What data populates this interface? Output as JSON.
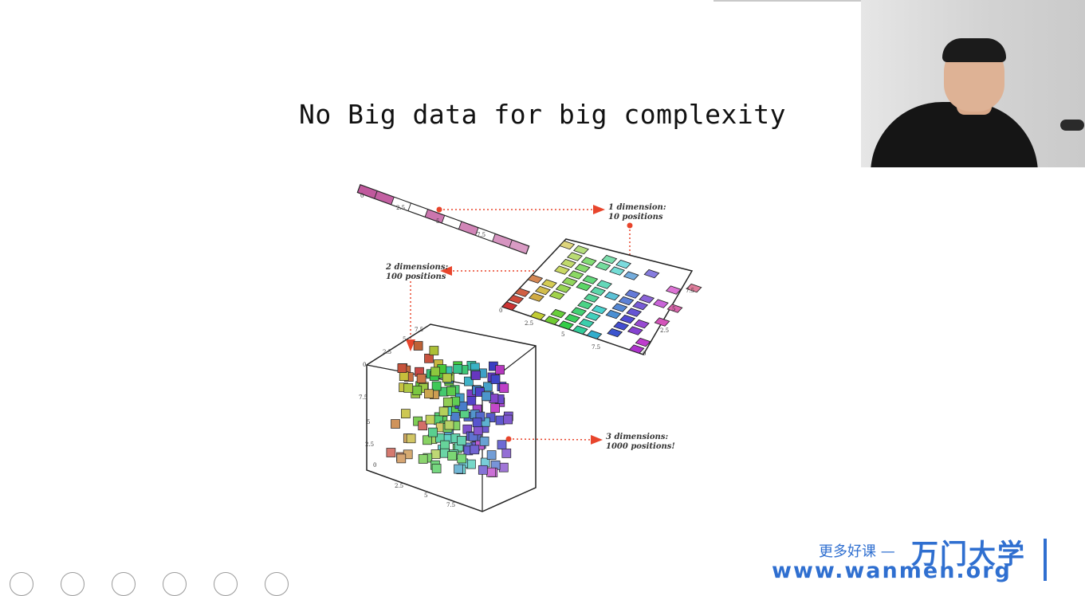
{
  "slide": {
    "title": "No Big data for big complexity"
  },
  "figure": {
    "label_1d": [
      "1 dimension:",
      "10 positions"
    ],
    "label_2d": [
      "2 dimensions:",
      "100 positions"
    ],
    "label_3d": [
      "3 dimensions:",
      "1000 positions!"
    ],
    "tick_labels": [
      "0",
      "2.5",
      "5",
      "7.5"
    ],
    "arrow_color": "#e8452c"
  },
  "watermark": {
    "tagline": "更多好课 —",
    "brand": "万门大学",
    "url": "www.wanmen.org",
    "color": "#2f6fd0"
  },
  "toolbar": {
    "buttons": [
      "previous-button",
      "next-button",
      "pen-button",
      "grid-button",
      "zoom-button",
      "menu-button"
    ]
  }
}
